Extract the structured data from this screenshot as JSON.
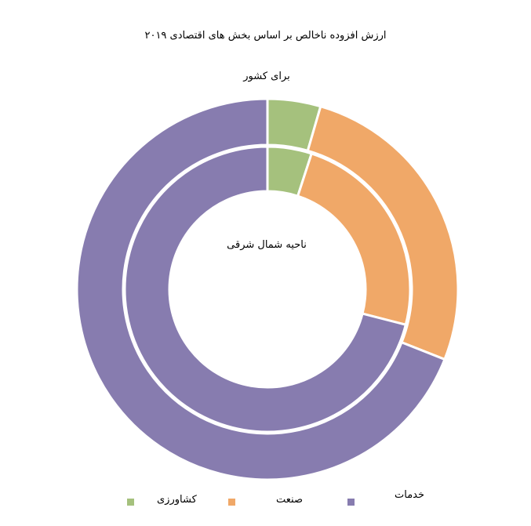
{
  "chart_data": {
    "type": "pie",
    "title": "ارزش افزوده ناخالص بر اساس بخش های اقتصادی ۲۰۱۹",
    "categories": [
      "کشاورزی",
      "صنعت",
      "خدمات"
    ],
    "colors": [
      "#a5c17d",
      "#f0a868",
      "#877caf"
    ],
    "series": [
      {
        "name": "برای کشور",
        "values": [
          4.5,
          26.5,
          69.0
        ]
      },
      {
        "name": "ناحیه شمال شرقی",
        "values": [
          5.0,
          24.0,
          71.0
        ]
      }
    ],
    "legend": "bottom"
  }
}
